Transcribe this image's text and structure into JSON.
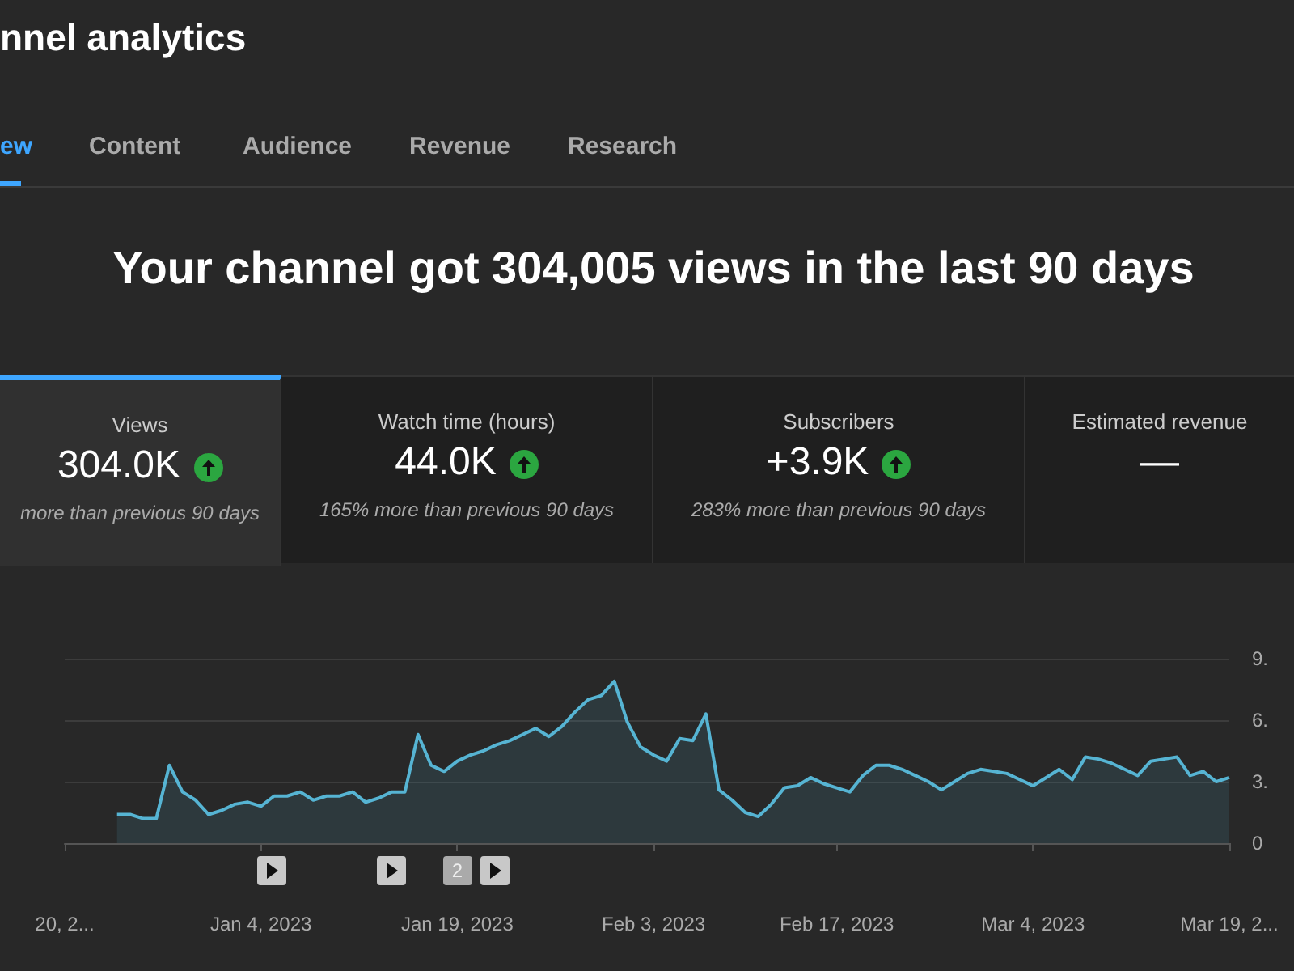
{
  "chart_data": {
    "type": "area",
    "title": "nnel analytics",
    "subtitle": "Your channel got 304,005 views in the last 90 days",
    "annotations": [
      "ew",
      "Content",
      "Audience",
      "Revenue",
      "Research",
      "Views",
      "304.0K",
      "more than previous 90 days",
      "Watch time (hours)",
      "44.0K",
      "165% more than previous 90 days",
      "Subscribers",
      "+3.9K",
      "283% more than previous 90 days",
      "Estimated revenue",
      "—",
      {
        "text": "2",
        "x": "2023-01-19"
      }
    ],
    "x": [
      "2022-12-24",
      "2022-12-25",
      "2022-12-26",
      "2022-12-27",
      "2022-12-28",
      "2022-12-29",
      "2022-12-30",
      "2022-12-31",
      "2023-01-01",
      "2023-01-02",
      "2023-01-03",
      "2023-01-04",
      "2023-01-05",
      "2023-01-06",
      "2023-01-07",
      "2023-01-08",
      "2023-01-09",
      "2023-01-10",
      "2023-01-11",
      "2023-01-12",
      "2023-01-13",
      "2023-01-14",
      "2023-01-15",
      "2023-01-16",
      "2023-01-17",
      "2023-01-18",
      "2023-01-19",
      "2023-01-20",
      "2023-01-21",
      "2023-01-22",
      "2023-01-23",
      "2023-01-24",
      "2023-01-25",
      "2023-01-26",
      "2023-01-27",
      "2023-01-28",
      "2023-01-29",
      "2023-01-30",
      "2023-01-31",
      "2023-02-01",
      "2023-02-02",
      "2023-02-03",
      "2023-02-04",
      "2023-02-05",
      "2023-02-06",
      "2023-02-07",
      "2023-02-08",
      "2023-02-09",
      "2023-02-10",
      "2023-02-11",
      "2023-02-12",
      "2023-02-13",
      "2023-02-14",
      "2023-02-15",
      "2023-02-16",
      "2023-02-17",
      "2023-02-18",
      "2023-02-19",
      "2023-02-20",
      "2023-02-21",
      "2023-02-22",
      "2023-02-23",
      "2023-02-24",
      "2023-02-25",
      "2023-02-26",
      "2023-02-27",
      "2023-02-28",
      "2023-03-01",
      "2023-03-02",
      "2023-03-03",
      "2023-03-04",
      "2023-03-05",
      "2023-03-06",
      "2023-03-07",
      "2023-03-08",
      "2023-03-09",
      "2023-03-10",
      "2023-03-11",
      "2023-03-12",
      "2023-03-13",
      "2023-03-14",
      "2023-03-15",
      "2023-03-16",
      "2023-03-17",
      "2023-03-18",
      "2023-03-19"
    ],
    "series": [
      {
        "color": "#56b4d3",
        "values": [
          1.4,
          1.4,
          1.2,
          1.2,
          3.8,
          2.5,
          2.1,
          1.4,
          1.6,
          1.9,
          2.0,
          1.8,
          2.3,
          2.3,
          2.5,
          2.1,
          2.3,
          2.3,
          2.5,
          2.0,
          2.2,
          2.5,
          2.5,
          5.3,
          3.8,
          3.5,
          4.0,
          4.3,
          4.5,
          4.8,
          5.0,
          5.3,
          5.6,
          5.2,
          5.7,
          6.4,
          7.0,
          7.2,
          7.9,
          5.9,
          4.7,
          4.3,
          4.0,
          5.1,
          5.0,
          6.3,
          2.6,
          2.1,
          1.5,
          1.3,
          1.9,
          2.7,
          2.8,
          3.2,
          2.9,
          2.7,
          2.5,
          3.3,
          3.8,
          3.8,
          3.6,
          3.3,
          3.0,
          2.6,
          3.0,
          3.4,
          3.6,
          3.5,
          3.4,
          3.1,
          2.8,
          3.2,
          3.6,
          3.1,
          4.2,
          4.1,
          3.9,
          3.6,
          3.3,
          4.0,
          4.1,
          4.2,
          3.3,
          3.5,
          3.0,
          3.2
        ]
      }
    ],
    "xlim": [
      "2022-12-20",
      "2023-03-19"
    ],
    "xticks": [
      {
        "value": "2022-12-20",
        "label": "20, 2..."
      },
      {
        "value": "2023-01-04",
        "label": "Jan 4, 2023"
      },
      {
        "value": "2023-01-19",
        "label": "Jan 19, 2023"
      },
      {
        "value": "2023-02-03",
        "label": "Feb 3, 2023"
      },
      {
        "value": "2023-02-17",
        "label": "Feb 17, 2023"
      },
      {
        "value": "2023-03-04",
        "label": "Mar 4, 2023"
      },
      {
        "value": "2023-03-19",
        "label": "Mar 19, 2..."
      }
    ],
    "ylim": [
      0,
      9
    ],
    "yticks": [
      {
        "value": 0,
        "label": "0"
      },
      {
        "value": 3,
        "label": "3."
      },
      {
        "value": 6,
        "label": "6."
      },
      {
        "value": 9,
        "label": "9."
      }
    ],
    "grid": "y",
    "marker": "none",
    "line_style": "solid"
  }
}
